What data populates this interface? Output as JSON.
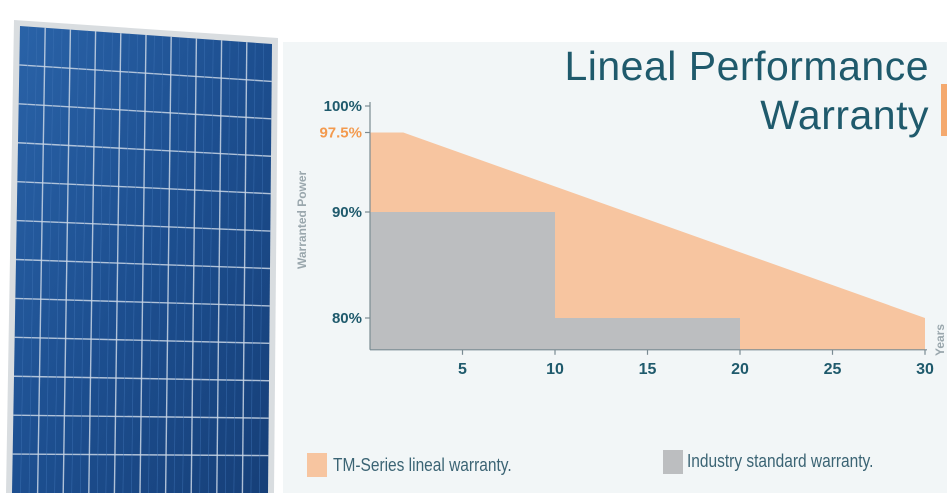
{
  "chart_data": {
    "type": "area",
    "title": "Lineal Performance Warranty",
    "title_lines": [
      "Lineal Performance",
      "Warranty"
    ],
    "ylabel": "Warranted Power",
    "xlabel": "Years",
    "xlim": [
      0,
      30
    ],
    "ylim": [
      77,
      100
    ],
    "x_ticks": [
      5,
      10,
      15,
      20,
      25,
      30
    ],
    "x_tick_labels": [
      "5",
      "10",
      "15",
      "20",
      "25",
      "30"
    ],
    "y_ticks": [
      {
        "value": 100,
        "label": "100%",
        "highlight": false
      },
      {
        "value": 97.5,
        "label": "97.5%",
        "highlight": true
      },
      {
        "value": 90,
        "label": "90%",
        "highlight": false
      },
      {
        "value": 80,
        "label": "80%",
        "highlight": false
      }
    ],
    "series": [
      {
        "name": "TM-Series lineal warranty.",
        "color": "#f7c5a0",
        "points": [
          [
            0,
            97.5
          ],
          [
            1.8,
            97.5
          ],
          [
            30,
            80
          ]
        ]
      },
      {
        "name": "Industry standard warranty.",
        "color": "#bcbec0",
        "points": [
          [
            0,
            90
          ],
          [
            10,
            90
          ],
          [
            10,
            80
          ],
          [
            20,
            80
          ]
        ]
      }
    ],
    "grid": false,
    "legend_position": "bottom"
  },
  "colors": {
    "accent": "#f4a96e",
    "text": "#1f5a6c",
    "highlight_tick": "#f39a4e",
    "chart_bg": "#f2f6f7",
    "panel_blue": "#1a4f94"
  },
  "panel": {
    "icon": "solar-panel-image"
  }
}
